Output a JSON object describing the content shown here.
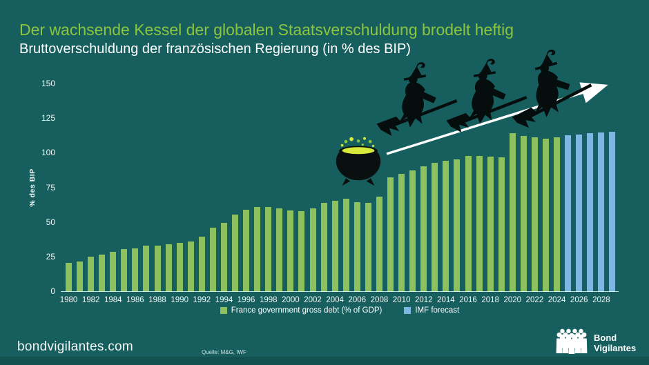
{
  "header": {
    "title": "Der wachsende Kessel der globalen Staatsverschuldung brodelt heftig",
    "subtitle": "Bruttoverschuldung der französischen Regierung (in % des BIP)"
  },
  "chart_data": {
    "type": "bar",
    "title": "Bruttoverschuldung der französischen Regierung (in % des BIP)",
    "xlabel": "",
    "ylabel": "% des BIP",
    "ylim": [
      0,
      150
    ],
    "yticks": [
      0,
      25,
      50,
      75,
      100,
      125,
      150
    ],
    "grid": false,
    "legend_position": "bottom",
    "xtick_labels": [
      "1980",
      "1982",
      "1984",
      "1986",
      "1988",
      "1990",
      "1992",
      "1994",
      "1996",
      "1998",
      "2000",
      "2002",
      "2004",
      "2006",
      "2008",
      "2010",
      "2012",
      "2014",
      "2016",
      "2018",
      "2020",
      "2022",
      "2024",
      "2026",
      "2028"
    ],
    "series": [
      {
        "name": "France government gross debt (% of GDP)",
        "color": "#8dc05e",
        "start_year": 1980,
        "values": [
          20.8,
          22.1,
          25.4,
          26.7,
          29.1,
          30.7,
          31.2,
          33.5,
          33.4,
          34.2,
          35.6,
          36.3,
          40.0,
          46.6,
          49.9,
          56.1,
          59.3,
          61.1,
          61.3,
          60.5,
          58.9,
          58.3,
          60.3,
          64.4,
          65.9,
          67.4,
          64.6,
          64.5,
          68.8,
          83.0,
          85.3,
          87.8,
          90.6,
          93.4,
          94.9,
          95.6,
          98.0,
          98.1,
          97.8,
          97.4,
          114.8,
          112.9,
          111.9,
          110.6,
          111.7
        ]
      },
      {
        "name": "IMF forecast",
        "color": "#7cb8e1",
        "start_year": 2025,
        "values": [
          113.1,
          113.9,
          114.5,
          115.0,
          115.6
        ]
      }
    ],
    "annotations": [
      "witches-on-broomsticks",
      "bubbling-cauldron",
      "rising-trend-arrow"
    ]
  },
  "legend": {
    "items": [
      {
        "label": "France government gross debt (% of GDP)",
        "color": "#8dc05e"
      },
      {
        "label": "IMF forecast",
        "color": "#7cb8e1"
      }
    ]
  },
  "footer": {
    "website": "bondvigilantes.com",
    "source": "Quelle: M&G, IWF",
    "brand": {
      "line1": "Bond",
      "line2": "Vigilantes"
    }
  },
  "colors": {
    "background": "#175f5e",
    "bottom_strip": "#125150",
    "title_green": "#8cc63f",
    "bar_green": "#8dc05e",
    "bar_blue": "#7cb8e1",
    "cauldron_liquid": "#d8ea3c",
    "silhouette_black": "#060d0d",
    "arrow_white": "#ffffff"
  }
}
